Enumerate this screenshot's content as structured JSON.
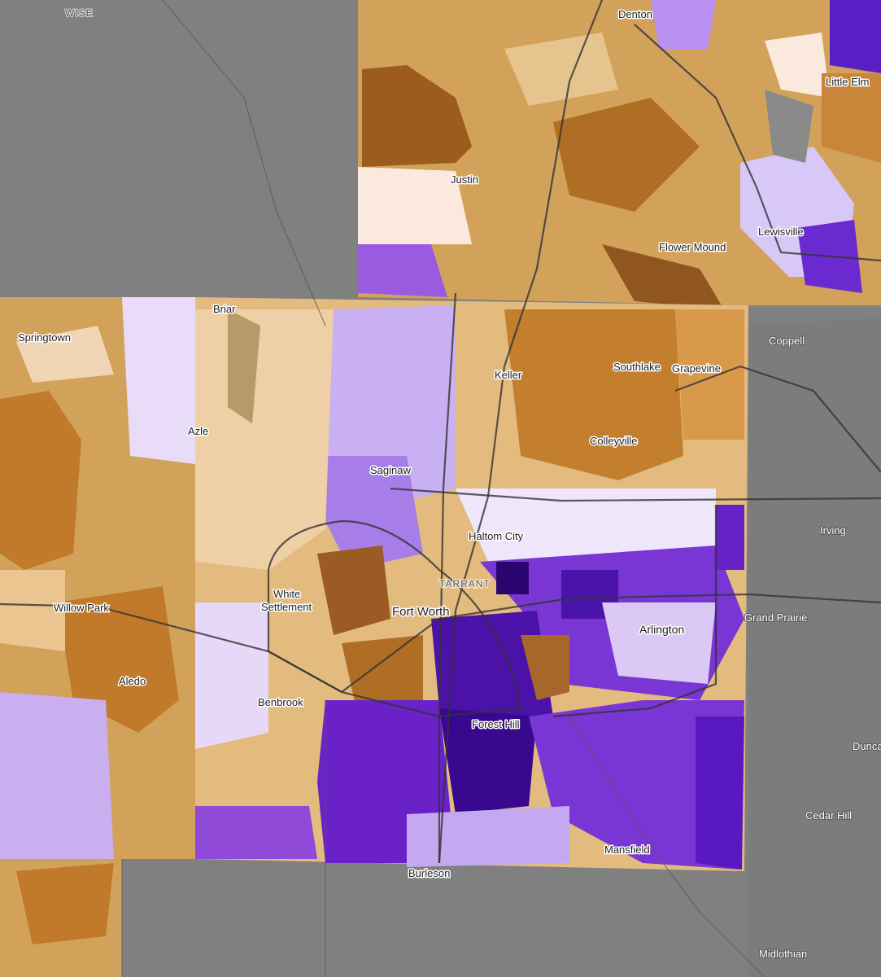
{
  "labels": {
    "wise": "WISE",
    "denton": "Denton",
    "little_elm": "Little Elm",
    "justin": "Justin",
    "flower_mound": "Flower Mound",
    "lewisville": "Lewisville",
    "briar": "Briar",
    "springtown": "Springtown",
    "coppell": "Coppell",
    "keller": "Keller",
    "southlake": "Southlake",
    "grapevine": "Grapevine",
    "azle": "Azle",
    "colleyville": "Colleyville",
    "saginaw": "Saginaw",
    "haltom_city": "Haltom City",
    "irving": "Irving",
    "tarrant": "TARRANT",
    "white": "White",
    "settlement": "Settlement",
    "fort_worth": "Fort Worth",
    "grand_prairie": "Grand Prairie",
    "willow_park": "Willow Park",
    "arlington": "Arlington",
    "aledo": "Aledo",
    "benbrook": "Benbrook",
    "forest_hill": "Forest Hill",
    "duncanville": "Duncanville",
    "cedar_hill": "Cedar Hill",
    "mansfield": "Mansfield",
    "burleson": "Burleson",
    "midlothian": "Midlothian"
  }
}
